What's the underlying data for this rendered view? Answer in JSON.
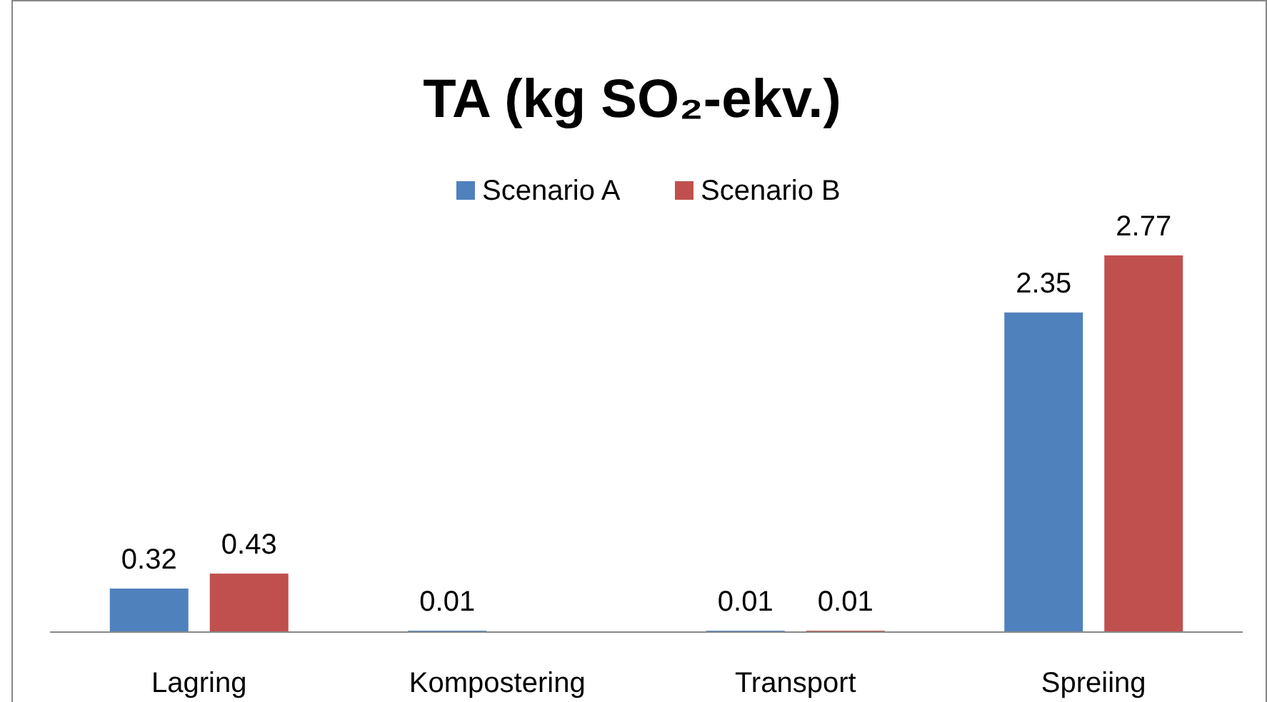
{
  "chart_data": {
    "type": "bar",
    "title": "TA (kg SO₂-ekv.)",
    "categories": [
      "Lagring",
      "Kompostering",
      "Transport",
      "Spreiing"
    ],
    "series": [
      {
        "name": "Scenario A",
        "color": "#4f81bd",
        "values": [
          0.32,
          0.01,
          0.01,
          2.35
        ]
      },
      {
        "name": "Scenario B",
        "color": "#c0504d",
        "values": [
          0.43,
          null,
          0.01,
          2.77
        ]
      }
    ],
    "data_labels": true,
    "legend": "top",
    "grid": false
  }
}
